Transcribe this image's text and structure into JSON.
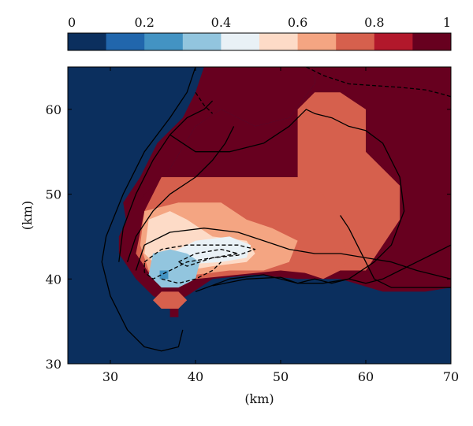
{
  "chart_data": {
    "type": "heatmap",
    "title": "",
    "xlabel": "(km)",
    "ylabel": "(km)",
    "xlim": [
      25,
      70
    ],
    "ylim": [
      30,
      65
    ],
    "xticks": [
      30,
      40,
      50,
      60,
      70
    ],
    "yticks": [
      30,
      40,
      50,
      60
    ],
    "x_tick_labels": [
      "30",
      "40",
      "50",
      "60",
      "70"
    ],
    "y_tick_labels": [
      "30",
      "40",
      "50",
      "60"
    ],
    "colorbar": {
      "position": "top",
      "range": [
        0,
        1
      ],
      "ticks": [
        0,
        0.2,
        0.4,
        0.6,
        0.8,
        1
      ],
      "tick_labels": [
        "0",
        "0.2",
        "0.4",
        "0.6",
        "0.8",
        "1"
      ],
      "colors": [
        "#0b2f5e",
        "#2166ac",
        "#4393c3",
        "#92c5de",
        "#e9f1f6",
        "#fddbc7",
        "#f4a582",
        "#d6604d",
        "#b2182b",
        "#67001f"
      ]
    },
    "background_value": 0.05,
    "regions": [
      {
        "value": 0.95,
        "polygon": [
          [
            31.5,
            49
          ],
          [
            33.5,
            52
          ],
          [
            35.5,
            56
          ],
          [
            38.5,
            59
          ],
          [
            40,
            62
          ],
          [
            41,
            65
          ],
          [
            54,
            65
          ],
          [
            54,
            63
          ],
          [
            51,
            59
          ],
          [
            47,
            58
          ],
          [
            43,
            60
          ],
          [
            40,
            58
          ],
          [
            37,
            53
          ],
          [
            34,
            49
          ],
          [
            32,
            46
          ]
        ]
      },
      {
        "value": 0.9,
        "polygon": [
          [
            31,
            45
          ],
          [
            32,
            47
          ],
          [
            34,
            50
          ],
          [
            37,
            53
          ],
          [
            40,
            58
          ],
          [
            43,
            60
          ],
          [
            47,
            58
          ],
          [
            51,
            59
          ],
          [
            54,
            63
          ],
          [
            54,
            65
          ],
          [
            70,
            65
          ],
          [
            70,
            39
          ],
          [
            67,
            38.5
          ],
          [
            62,
            38.5
          ],
          [
            57,
            40
          ],
          [
            52,
            40
          ],
          [
            47,
            40.5
          ],
          [
            42,
            40
          ],
          [
            39,
            38
          ],
          [
            37,
            37
          ],
          [
            35,
            38
          ],
          [
            33,
            40
          ],
          [
            31,
            43
          ]
        ]
      },
      {
        "value": 0.7,
        "polygon": [
          [
            52,
            60
          ],
          [
            54,
            62
          ],
          [
            57,
            62
          ],
          [
            60,
            60
          ],
          [
            60,
            55
          ],
          [
            62,
            53
          ],
          [
            64,
            51
          ],
          [
            64,
            47
          ],
          [
            62,
            44
          ],
          [
            60,
            41
          ],
          [
            57,
            41
          ],
          [
            55,
            40
          ],
          [
            52,
            41
          ]
        ]
      },
      {
        "value": 0.75,
        "polygon": [
          [
            33,
            43
          ],
          [
            34,
            48
          ],
          [
            36,
            52
          ],
          [
            40,
            52
          ],
          [
            44,
            52
          ],
          [
            48,
            52
          ],
          [
            52,
            52
          ],
          [
            55,
            50
          ],
          [
            57,
            46
          ],
          [
            58,
            42
          ],
          [
            55,
            40.5
          ],
          [
            50,
            41
          ],
          [
            45,
            40.5
          ],
          [
            40,
            40
          ],
          [
            38,
            39
          ],
          [
            35,
            40
          ]
        ]
      },
      {
        "value": 0.65,
        "polygon": [
          [
            33.5,
            44
          ],
          [
            34,
            48
          ],
          [
            38,
            49
          ],
          [
            43,
            49
          ],
          [
            46,
            47
          ],
          [
            49,
            46
          ],
          [
            52,
            44.5
          ],
          [
            51,
            42
          ],
          [
            48,
            41
          ],
          [
            44,
            41
          ],
          [
            40,
            40.5
          ],
          [
            37,
            40
          ],
          [
            34.5,
            41
          ]
        ]
      },
      {
        "value": 0.55,
        "polygon": [
          [
            34,
            43
          ],
          [
            34.5,
            47
          ],
          [
            37,
            48
          ],
          [
            39,
            47
          ],
          [
            42,
            45
          ],
          [
            46,
            44.5
          ],
          [
            47,
            43
          ],
          [
            46,
            42
          ],
          [
            42,
            41.5
          ],
          [
            39,
            41
          ],
          [
            36,
            41
          ]
        ]
      },
      {
        "value": 0.45,
        "polygon": [
          [
            37,
            43
          ],
          [
            40,
            44.5
          ],
          [
            44,
            45
          ],
          [
            46.5,
            44
          ],
          [
            46,
            42.5
          ],
          [
            43,
            42
          ],
          [
            40,
            41.8
          ],
          [
            38,
            42
          ]
        ]
      },
      {
        "value": 0.35,
        "polygon": [
          [
            35,
            43
          ],
          [
            37,
            43.5
          ],
          [
            39,
            43
          ],
          [
            40.5,
            42
          ],
          [
            40,
            40
          ],
          [
            38,
            39
          ],
          [
            36,
            39
          ],
          [
            34.5,
            40.5
          ]
        ]
      },
      {
        "value": 0.2,
        "polygon": [
          [
            35.8,
            40
          ],
          [
            36.8,
            40
          ],
          [
            36.8,
            41
          ],
          [
            35.8,
            41
          ]
        ]
      },
      {
        "value": 0.7,
        "polygon": [
          [
            36,
            36.5
          ],
          [
            38,
            36.5
          ],
          [
            39,
            37.5
          ],
          [
            38,
            38.5
          ],
          [
            36,
            38.5
          ],
          [
            35,
            37.5
          ]
        ]
      },
      {
        "value": 0.9,
        "polygon": [
          [
            37,
            35.5
          ],
          [
            38,
            35.5
          ],
          [
            38,
            36.5
          ],
          [
            37,
            36.5
          ]
        ]
      }
    ],
    "contours": [
      {
        "style": "solid",
        "points": [
          [
            40,
            65
          ],
          [
            39,
            62
          ],
          [
            37,
            59
          ],
          [
            34,
            55
          ],
          [
            31.5,
            50
          ],
          [
            29.5,
            45
          ],
          [
            29,
            42
          ],
          [
            30,
            38
          ],
          [
            32,
            34
          ],
          [
            34,
            32
          ],
          [
            36,
            31.5
          ],
          [
            38,
            32
          ],
          [
            38.5,
            34
          ]
        ]
      },
      {
        "style": "solid",
        "points": [
          [
            31,
            42
          ],
          [
            31.5,
            46
          ],
          [
            33,
            50
          ],
          [
            35,
            54
          ],
          [
            37,
            57
          ],
          [
            39,
            59
          ],
          [
            41,
            60
          ],
          [
            42,
            61
          ]
        ]
      },
      {
        "style": "solid",
        "points": [
          [
            37,
            57
          ],
          [
            40,
            55
          ],
          [
            44,
            55
          ],
          [
            48,
            56
          ],
          [
            51,
            58
          ],
          [
            53,
            60
          ],
          [
            54,
            59.5
          ],
          [
            56,
            59
          ],
          [
            58,
            58
          ],
          [
            60,
            57.5
          ],
          [
            62,
            56
          ],
          [
            64,
            52
          ],
          [
            64.5,
            48
          ],
          [
            63,
            44
          ],
          [
            61,
            42
          ],
          [
            58,
            40
          ],
          [
            55,
            39.5
          ],
          [
            52,
            39.5
          ],
          [
            48,
            40.5
          ],
          [
            44,
            40
          ],
          [
            40,
            38.5
          ]
        ]
      },
      {
        "style": "solid",
        "points": [
          [
            32,
            42
          ],
          [
            33,
            45
          ],
          [
            35,
            48
          ],
          [
            37,
            50
          ],
          [
            40,
            52
          ],
          [
            42,
            54
          ],
          [
            43.5,
            56
          ],
          [
            44.5,
            58
          ]
        ]
      },
      {
        "style": "solid",
        "points": [
          [
            33,
            41
          ],
          [
            34,
            44
          ],
          [
            37,
            45.5
          ],
          [
            41,
            46
          ],
          [
            45,
            45.5
          ],
          [
            48,
            44.5
          ],
          [
            51,
            43.5
          ],
          [
            54,
            43
          ],
          [
            57,
            43
          ],
          [
            60,
            42.5
          ],
          [
            63,
            42
          ],
          [
            66,
            41
          ],
          [
            70,
            40
          ]
        ]
      },
      {
        "style": "solid",
        "points": [
          [
            57,
            47.5
          ],
          [
            58,
            46
          ],
          [
            59,
            44
          ],
          [
            60,
            42
          ],
          [
            61,
            40
          ],
          [
            63,
            39
          ],
          [
            66,
            39
          ],
          [
            68,
            39
          ],
          [
            70,
            39
          ]
        ]
      },
      {
        "style": "solid",
        "points": [
          [
            52,
            39.5
          ],
          [
            54,
            40
          ],
          [
            56,
            39.5
          ],
          [
            58,
            40
          ],
          [
            60,
            39.5
          ],
          [
            62,
            40
          ],
          [
            64,
            41
          ],
          [
            66,
            42
          ],
          [
            68,
            43
          ],
          [
            70,
            44
          ]
        ]
      },
      {
        "style": "solid",
        "points": [
          [
            42,
            39.2
          ],
          [
            46,
            40
          ],
          [
            50,
            40.2
          ],
          [
            52,
            39.5
          ]
        ]
      },
      {
        "style": "dashed",
        "points": [
          [
            34,
            42
          ],
          [
            36,
            43.5
          ],
          [
            39,
            44
          ],
          [
            42,
            44
          ],
          [
            45,
            44
          ],
          [
            47,
            43.5
          ],
          [
            45,
            42.8
          ],
          [
            42,
            42.5
          ],
          [
            39,
            42
          ],
          [
            37,
            41
          ],
          [
            35,
            40
          ],
          [
            34,
            40.8
          ],
          [
            34,
            42
          ]
        ]
      },
      {
        "style": "dashed",
        "points": [
          [
            38,
            42
          ],
          [
            40,
            43
          ],
          [
            43,
            43.5
          ],
          [
            45,
            43
          ],
          [
            42,
            42.5
          ],
          [
            39,
            41.5
          ],
          [
            38,
            42
          ]
        ]
      },
      {
        "style": "dashed",
        "points": [
          [
            36,
            40
          ],
          [
            38,
            39.5
          ],
          [
            40,
            40
          ],
          [
            42,
            41
          ],
          [
            43,
            42
          ]
        ]
      },
      {
        "style": "dashed",
        "points": [
          [
            53,
            65
          ],
          [
            55,
            64
          ],
          [
            58,
            63
          ],
          [
            61,
            62.8
          ],
          [
            64,
            62.6
          ],
          [
            67,
            62.3
          ],
          [
            69,
            61.8
          ],
          [
            70,
            61.5
          ]
        ]
      },
      {
        "style": "dashed",
        "points": [
          [
            40,
            62
          ],
          [
            41,
            60.5
          ],
          [
            42,
            59.5
          ]
        ]
      }
    ]
  }
}
